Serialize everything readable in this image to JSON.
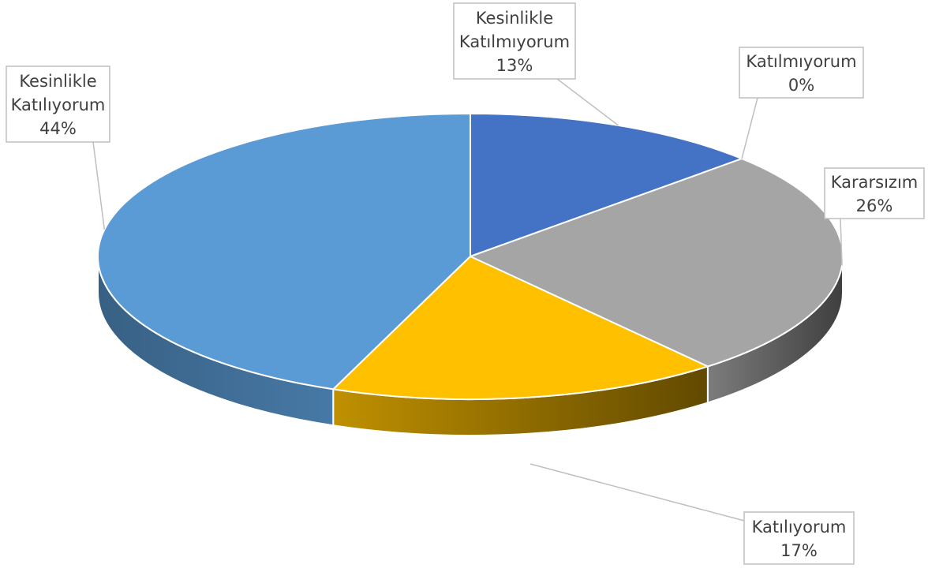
{
  "chart_data": {
    "type": "pie",
    "style": "3d",
    "title": "",
    "slices": [
      {
        "label_lines": [
          "Kesinlikle",
          "Katılmıyorum"
        ],
        "value": 13,
        "percent": "13%",
        "color": "#4472C4"
      },
      {
        "label_lines": [
          "Katılmıyorum"
        ],
        "value": 0,
        "percent": "0%",
        "color": "#ED7D31"
      },
      {
        "label_lines": [
          "Kararsızım"
        ],
        "value": 26,
        "percent": "26%",
        "color": "#A5A5A5"
      },
      {
        "label_lines": [
          "Katılıyorum"
        ],
        "value": 17,
        "percent": "17%",
        "color": "#FFC000"
      },
      {
        "label_lines": [
          "Kesinlikle",
          "Katılıyorum"
        ],
        "value": 44,
        "percent": "44%",
        "color": "#5B9BD5"
      }
    ],
    "legend": "none",
    "data_labels": "callouts"
  }
}
